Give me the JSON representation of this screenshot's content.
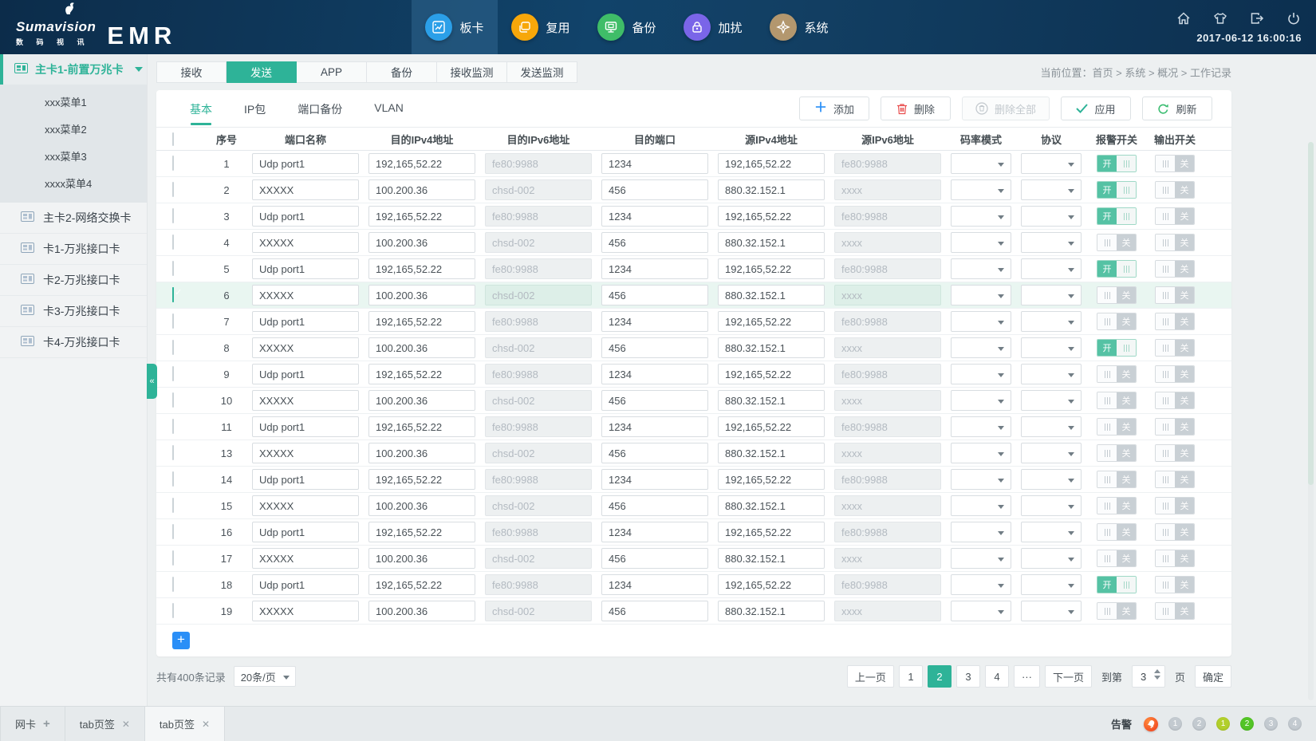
{
  "colors": {
    "accent": "#2eb398",
    "toggle_on": "#55c2a4",
    "add_blue": "#2a8ff7",
    "delete_red": "#e94f4f",
    "alarm_red": "#ee3a1c"
  },
  "header": {
    "logo": {
      "brand": "Sumavision",
      "sub": "数 码 视 讯",
      "product": "EMR"
    },
    "nav": [
      {
        "label": "板卡",
        "icon": "board-icon",
        "color": "#2b9fe8",
        "active": true
      },
      {
        "label": "复用",
        "icon": "mux-icon",
        "color": "#f7a70a",
        "active": false
      },
      {
        "label": "备份",
        "icon": "backup-icon",
        "color": "#3fbd68",
        "active": false
      },
      {
        "label": "加扰",
        "icon": "scramble-lock-icon",
        "color": "#7a65e8",
        "active": false
      },
      {
        "label": "系统",
        "icon": "system-icon",
        "color": "#b3976e",
        "active": false
      }
    ],
    "right_icons": [
      "home-icon",
      "theme-skin-icon",
      "logout-icon",
      "power-icon"
    ],
    "datetime": "2017-06-12  16:00:16"
  },
  "sidebar": {
    "active_item": {
      "label": "主卡1-前置万兆卡",
      "icon": "card-icon"
    },
    "submenu": [
      "xxx菜单1",
      "xxx菜单2",
      "xxx菜单3",
      "xxxx菜单4"
    ],
    "items": [
      {
        "label": "主卡2-网络交换卡",
        "icon": "card-icon"
      },
      {
        "label": "卡1-万兆接口卡",
        "icon": "card-icon"
      },
      {
        "label": "卡2-万兆接口卡",
        "icon": "card-icon"
      },
      {
        "label": "卡3-万兆接口卡",
        "icon": "card-icon"
      },
      {
        "label": "卡4-万兆接口卡",
        "icon": "card-icon"
      }
    ],
    "collapse_glyph": "«"
  },
  "breadcrumb": {
    "text": "当前位置：首页 > 系统 > 概况 > 工作记录"
  },
  "tabs": {
    "items": [
      "接收",
      "发送",
      "APP",
      "备份",
      "接收监测",
      "发送监测"
    ],
    "active_index": 1
  },
  "subtabs": {
    "items": [
      "基本",
      "IP包",
      "端口备份",
      "VLAN"
    ],
    "active_index": 0
  },
  "toolbar": {
    "buttons": [
      {
        "label": "添加",
        "icon": "plus-icon",
        "kind": "add",
        "disabled": false
      },
      {
        "label": "删除",
        "icon": "trash-icon",
        "kind": "delete",
        "disabled": false
      },
      {
        "label": "删除全部",
        "icon": "trash-all-icon",
        "kind": "delete-all",
        "disabled": true
      },
      {
        "label": "应用",
        "icon": "check-icon",
        "kind": "apply",
        "disabled": false
      },
      {
        "label": "刷新",
        "icon": "refresh-icon",
        "kind": "refresh",
        "disabled": false
      }
    ]
  },
  "table": {
    "columns": [
      "序号",
      "端口名称",
      "目的IPv4地址",
      "目的IPv6地址",
      "目的端口",
      "源IPv4地址",
      "源IPv6地址",
      "码率模式",
      "协议",
      "报警开关",
      "输出开关"
    ],
    "toggle_on_label": "开",
    "toggle_off_label": "关",
    "rows": [
      {
        "num": "1",
        "name": "Udp port1",
        "dst_ipv4": "192,165,52.22",
        "dst_ipv6": "fe80:9988",
        "dst_port": "1234",
        "src_ipv4": "192,165,52.22",
        "src_ipv6": "fe80:9988",
        "rate_mode": "",
        "protocol": "",
        "alarm": true,
        "output": false,
        "checked": false
      },
      {
        "num": "2",
        "name": "XXXXX",
        "dst_ipv4": "100.200.36",
        "dst_ipv6": "chsd-002",
        "dst_port": "456",
        "src_ipv4": "880.32.152.1",
        "src_ipv6": "xxxx",
        "rate_mode": "",
        "protocol": "",
        "alarm": true,
        "output": false,
        "checked": false
      },
      {
        "num": "3",
        "name": "Udp port1",
        "dst_ipv4": "192,165,52.22",
        "dst_ipv6": "fe80:9988",
        "dst_port": "1234",
        "src_ipv4": "192,165,52.22",
        "src_ipv6": "fe80:9988",
        "rate_mode": "",
        "protocol": "",
        "alarm": true,
        "output": false,
        "checked": false
      },
      {
        "num": "4",
        "name": "XXXXX",
        "dst_ipv4": "100.200.36",
        "dst_ipv6": "chsd-002",
        "dst_port": "456",
        "src_ipv4": "880.32.152.1",
        "src_ipv6": "xxxx",
        "rate_mode": "",
        "protocol": "",
        "alarm": false,
        "output": false,
        "checked": false
      },
      {
        "num": "5",
        "name": "Udp port1",
        "dst_ipv4": "192,165,52.22",
        "dst_ipv6": "fe80:9988",
        "dst_port": "1234",
        "src_ipv4": "192,165,52.22",
        "src_ipv6": "fe80:9988",
        "rate_mode": "",
        "protocol": "",
        "alarm": true,
        "output": false,
        "checked": false
      },
      {
        "num": "6",
        "name": "XXXXX",
        "dst_ipv4": "100.200.36",
        "dst_ipv6": "chsd-002",
        "dst_port": "456",
        "src_ipv4": "880.32.152.1",
        "src_ipv6": "xxxx",
        "rate_mode": "",
        "protocol": "",
        "alarm": false,
        "output": false,
        "checked": true
      },
      {
        "num": "7",
        "name": "Udp port1",
        "dst_ipv4": "192,165,52.22",
        "dst_ipv6": "fe80:9988",
        "dst_port": "1234",
        "src_ipv4": "192,165,52.22",
        "src_ipv6": "fe80:9988",
        "rate_mode": "",
        "protocol": "",
        "alarm": false,
        "output": false,
        "checked": false
      },
      {
        "num": "8",
        "name": "XXXXX",
        "dst_ipv4": "100.200.36",
        "dst_ipv6": "chsd-002",
        "dst_port": "456",
        "src_ipv4": "880.32.152.1",
        "src_ipv6": "xxxx",
        "rate_mode": "",
        "protocol": "",
        "alarm": true,
        "output": false,
        "checked": false
      },
      {
        "num": "9",
        "name": "Udp port1",
        "dst_ipv4": "192,165,52.22",
        "dst_ipv6": "fe80:9988",
        "dst_port": "1234",
        "src_ipv4": "192,165,52.22",
        "src_ipv6": "fe80:9988",
        "rate_mode": "",
        "protocol": "",
        "alarm": false,
        "output": false,
        "checked": false
      },
      {
        "num": "10",
        "name": "XXXXX",
        "dst_ipv4": "100.200.36",
        "dst_ipv6": "chsd-002",
        "dst_port": "456",
        "src_ipv4": "880.32.152.1",
        "src_ipv6": "xxxx",
        "rate_mode": "",
        "protocol": "",
        "alarm": false,
        "output": false,
        "checked": false
      },
      {
        "num": "11",
        "name": "Udp port1",
        "dst_ipv4": "192,165,52.22",
        "dst_ipv6": "fe80:9988",
        "dst_port": "1234",
        "src_ipv4": "192,165,52.22",
        "src_ipv6": "fe80:9988",
        "rate_mode": "",
        "protocol": "",
        "alarm": false,
        "output": false,
        "checked": false
      },
      {
        "num": "13",
        "name": "XXXXX",
        "dst_ipv4": "100.200.36",
        "dst_ipv6": "chsd-002",
        "dst_port": "456",
        "src_ipv4": "880.32.152.1",
        "src_ipv6": "xxxx",
        "rate_mode": "",
        "protocol": "",
        "alarm": false,
        "output": false,
        "checked": false
      },
      {
        "num": "14",
        "name": "Udp port1",
        "dst_ipv4": "192,165,52.22",
        "dst_ipv6": "fe80:9988",
        "dst_port": "1234",
        "src_ipv4": "192,165,52.22",
        "src_ipv6": "fe80:9988",
        "rate_mode": "",
        "protocol": "",
        "alarm": false,
        "output": false,
        "checked": false
      },
      {
        "num": "15",
        "name": "XXXXX",
        "dst_ipv4": "100.200.36",
        "dst_ipv6": "chsd-002",
        "dst_port": "456",
        "src_ipv4": "880.32.152.1",
        "src_ipv6": "xxxx",
        "rate_mode": "",
        "protocol": "",
        "alarm": false,
        "output": false,
        "checked": false
      },
      {
        "num": "16",
        "name": "Udp port1",
        "dst_ipv4": "192,165,52.22",
        "dst_ipv6": "fe80:9988",
        "dst_port": "1234",
        "src_ipv4": "192,165,52.22",
        "src_ipv6": "fe80:9988",
        "rate_mode": "",
        "protocol": "",
        "alarm": false,
        "output": false,
        "checked": false
      },
      {
        "num": "17",
        "name": "XXXXX",
        "dst_ipv4": "100.200.36",
        "dst_ipv6": "chsd-002",
        "dst_port": "456",
        "src_ipv4": "880.32.152.1",
        "src_ipv6": "xxxx",
        "rate_mode": "",
        "protocol": "",
        "alarm": false,
        "output": false,
        "checked": false
      },
      {
        "num": "18",
        "name": "Udp port1",
        "dst_ipv4": "192,165,52.22",
        "dst_ipv6": "fe80:9988",
        "dst_port": "1234",
        "src_ipv4": "192,165,52.22",
        "src_ipv6": "fe80:9988",
        "rate_mode": "",
        "protocol": "",
        "alarm": true,
        "output": false,
        "checked": false
      },
      {
        "num": "19",
        "name": "XXXXX",
        "dst_ipv4": "100.200.36",
        "dst_ipv6": "chsd-002",
        "dst_port": "456",
        "src_ipv4": "880.32.152.1",
        "src_ipv6": "xxxx",
        "rate_mode": "",
        "protocol": "",
        "alarm": false,
        "output": false,
        "checked": false
      }
    ]
  },
  "add_row_label": "+",
  "pagination": {
    "total_text": "共有400条记录",
    "page_size": "20条/页",
    "prev": "上一页",
    "pages": [
      "1",
      "2",
      "3",
      "4"
    ],
    "active_page": "2",
    "ellipsis": "···",
    "next": "下一页",
    "goto_prefix": "到第",
    "goto_value": "3",
    "goto_suffix": "页",
    "confirm": "确定"
  },
  "footer": {
    "tabs": [
      {
        "label": "网卡",
        "plus": true,
        "close": false,
        "active": false
      },
      {
        "label": "tab页签",
        "plus": false,
        "close": true,
        "active": false
      },
      {
        "label": "tab页签",
        "plus": false,
        "close": true,
        "active": true
      }
    ],
    "alarm_label": "告警",
    "alarm_icon": "alarm-bell-icon",
    "status_circles": [
      {
        "label": "1",
        "color": "#c3cad0"
      },
      {
        "label": "2",
        "color": "#c3cad0"
      },
      {
        "label": "1",
        "color": "#b2cf2c"
      },
      {
        "label": "2",
        "color": "#53c426"
      },
      {
        "label": "3",
        "color": "#c3cad0"
      },
      {
        "label": "4",
        "color": "#c3cad0"
      }
    ]
  }
}
